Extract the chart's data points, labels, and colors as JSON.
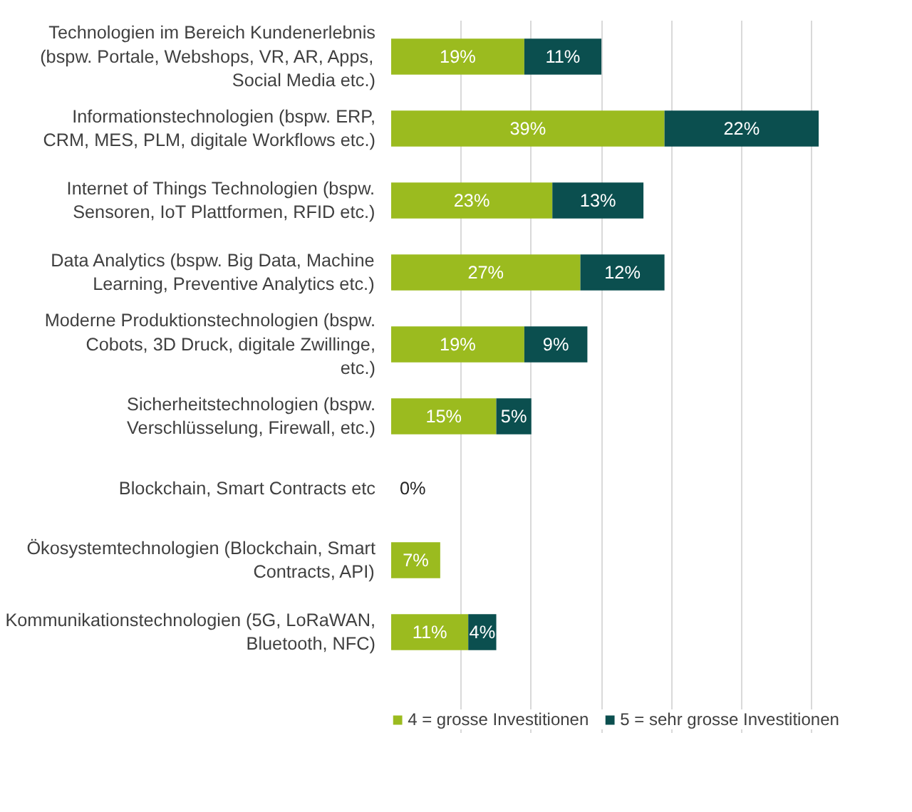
{
  "chart_data": {
    "type": "bar",
    "orientation": "horizontal",
    "stacked": true,
    "categories": [
      "Technologien im Bereich Kundenerlebnis (bspw. Portale, Webshops, VR, AR, Apps, Social Media etc.)",
      "Informationstechnologien (bspw. ERP, CRM, MES, PLM, digitale Workflows etc.)",
      "Internet of Things Technologien (bspw. Sensoren, IoT Plattformen, RFID etc.)",
      "Data Analytics (bspw. Big Data, Machine Learning, Preventive Analytics etc.)",
      "Moderne Produktionstechnologien (bspw. Cobots, 3D Druck, digitale Zwillinge, etc.)",
      "Sicherheitstechnologien (bspw. Verschlüsselung, Firewall, etc.)",
      "Blockchain, Smart Contracts etc",
      "Ökosystemtechnologien (Blockchain, Smart Contracts, API)",
      "Kommunikationstechnologien (5G, LoRaWAN, Bluetooth, NFC)"
    ],
    "series": [
      {
        "name": "4 = grosse Investitionen",
        "color": "#9bbb1f",
        "values": [
          19,
          39,
          23,
          27,
          19,
          15,
          0,
          7,
          11
        ],
        "value_labels": [
          "19%",
          "39%",
          "23%",
          "27%",
          "19%",
          "15%",
          "0%",
          "7%",
          "11%"
        ]
      },
      {
        "name": "5 = sehr grosse Investitionen",
        "color": "#0b4f4f",
        "values": [
          11,
          22,
          13,
          12,
          9,
          5,
          null,
          null,
          4
        ],
        "value_labels": [
          "11%",
          "22%",
          "13%",
          "12%",
          "9%",
          "5%",
          null,
          null,
          "4%"
        ]
      }
    ],
    "grid": "x",
    "tick_labels": "y",
    "legend": "bottom"
  }
}
